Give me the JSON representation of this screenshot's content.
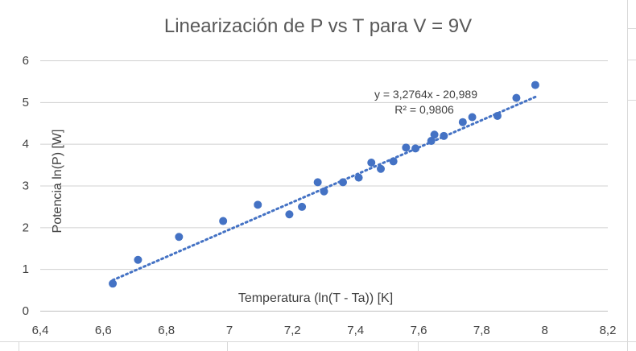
{
  "chart_data": {
    "type": "scatter",
    "title": "Linearización de P vs T para V = 9V",
    "xlabel": "Temperatura (ln(T - Ta)) [K]",
    "ylabel": "Potencia ln(P) [W]",
    "xlim": [
      6.4,
      8.2
    ],
    "ylim": [
      0,
      6
    ],
    "x_ticks": [
      "6,4",
      "6,6",
      "6,8",
      "7",
      "7,2",
      "7,4",
      "7,6",
      "7,8",
      "8",
      "8,2"
    ],
    "y_ticks": [
      "0",
      "1",
      "2",
      "3",
      "4",
      "5",
      "6"
    ],
    "grid": "horizontal",
    "trendline": {
      "type": "linear",
      "slope": 3.2764,
      "intercept": -20.989,
      "equation_label": "y = 3,2764x - 20,989",
      "r2_label": "R² = 0,9806"
    },
    "points": [
      {
        "x": 6.63,
        "y": 0.65
      },
      {
        "x": 6.71,
        "y": 1.22
      },
      {
        "x": 6.84,
        "y": 1.77
      },
      {
        "x": 6.98,
        "y": 2.15
      },
      {
        "x": 7.09,
        "y": 2.54
      },
      {
        "x": 7.19,
        "y": 2.31
      },
      {
        "x": 7.23,
        "y": 2.49
      },
      {
        "x": 7.28,
        "y": 3.08
      },
      {
        "x": 7.3,
        "y": 2.86
      },
      {
        "x": 7.36,
        "y": 3.08
      },
      {
        "x": 7.41,
        "y": 3.19
      },
      {
        "x": 7.45,
        "y": 3.55
      },
      {
        "x": 7.48,
        "y": 3.4
      },
      {
        "x": 7.52,
        "y": 3.58
      },
      {
        "x": 7.56,
        "y": 3.91
      },
      {
        "x": 7.59,
        "y": 3.89
      },
      {
        "x": 7.64,
        "y": 4.07
      },
      {
        "x": 7.65,
        "y": 4.22
      },
      {
        "x": 7.68,
        "y": 4.19
      },
      {
        "x": 7.74,
        "y": 4.52
      },
      {
        "x": 7.77,
        "y": 4.64
      },
      {
        "x": 7.85,
        "y": 4.67
      },
      {
        "x": 7.91,
        "y": 5.1
      },
      {
        "x": 7.97,
        "y": 5.41
      }
    ]
  }
}
